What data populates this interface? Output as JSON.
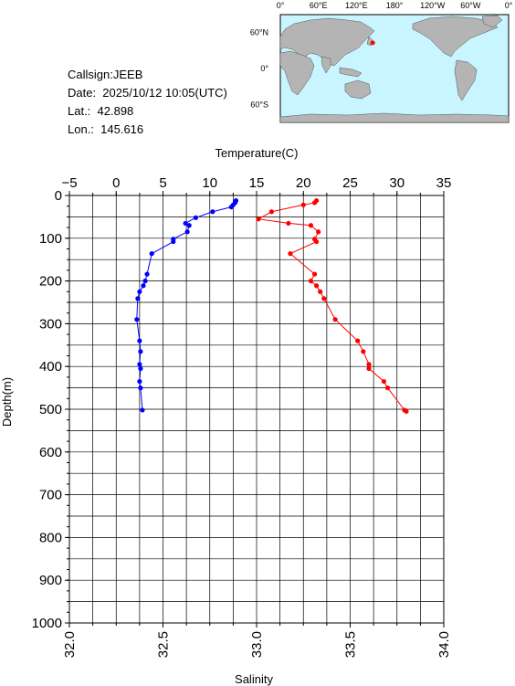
{
  "station": {
    "callsign": "Callsign:JEEB",
    "date": "Date:  2025/10/12 10:05(UTC)",
    "lat": "Lat.:  42.898",
    "lon": "Lon.:  145.616"
  },
  "map": {
    "lon_labels": [
      "0°",
      "60°E",
      "120°E",
      "180°",
      "120°W",
      "60°W",
      "0°"
    ],
    "lat_labels": [
      "60°N",
      "0°",
      "60°S"
    ],
    "ocean_color": "#c8f5ff",
    "land_color": "#b4b4b4",
    "marker_color": "#ff0000",
    "marker_lon": 145.616,
    "marker_lat": 42.898
  },
  "chart_data": {
    "type": "line",
    "temperature_axis": {
      "label": "Temperature(C)",
      "range": [
        -5,
        35
      ],
      "ticks": [
        "−5",
        "0",
        "5",
        "10",
        "15",
        "20",
        "25",
        "30",
        "35"
      ]
    },
    "salinity_axis": {
      "label": "Salinity",
      "range": [
        32.0,
        34.0
      ],
      "ticks": [
        "32.0",
        "32.5",
        "33.0",
        "33.5",
        "34.0"
      ]
    },
    "depth_axis": {
      "label": "Depth(m)",
      "range": [
        0,
        1000
      ],
      "ticks": [
        "0",
        "100",
        "200",
        "300",
        "400",
        "500",
        "600",
        "700",
        "800",
        "900",
        "1000"
      ]
    },
    "grid": true,
    "series": [
      {
        "color": "#0000ff",
        "axis": "temperature",
        "points": [
          {
            "depth": 12,
            "value": 12.8
          },
          {
            "depth": 17,
            "value": 12.7
          },
          {
            "depth": 22,
            "value": 12.5
          },
          {
            "depth": 27,
            "value": 12.3
          },
          {
            "depth": 38,
            "value": 10.3
          },
          {
            "depth": 52,
            "value": 8.5
          },
          {
            "depth": 65,
            "value": 7.4
          },
          {
            "depth": 70,
            "value": 7.8
          },
          {
            "depth": 85,
            "value": 7.6
          },
          {
            "depth": 102,
            "value": 6.1
          },
          {
            "depth": 108,
            "value": 6.1
          },
          {
            "depth": 136,
            "value": 3.8
          },
          {
            "depth": 184,
            "value": 3.3
          },
          {
            "depth": 200,
            "value": 3.1
          },
          {
            "depth": 211,
            "value": 2.9
          },
          {
            "depth": 225,
            "value": 2.5
          },
          {
            "depth": 241,
            "value": 2.3
          },
          {
            "depth": 290,
            "value": 2.2
          },
          {
            "depth": 340,
            "value": 2.5
          },
          {
            "depth": 365,
            "value": 2.6
          },
          {
            "depth": 395,
            "value": 2.5
          },
          {
            "depth": 405,
            "value": 2.6
          },
          {
            "depth": 435,
            "value": 2.5
          },
          {
            "depth": 450,
            "value": 2.6
          },
          {
            "depth": 502,
            "value": 2.8
          }
        ]
      },
      {
        "color": "#ff0000",
        "axis": "salinity",
        "points": [
          {
            "depth": 12,
            "value": 33.32
          },
          {
            "depth": 17,
            "value": 33.31
          },
          {
            "depth": 22,
            "value": 33.25
          },
          {
            "depth": 38,
            "value": 33.08
          },
          {
            "depth": 55,
            "value": 33.01
          },
          {
            "depth": 65,
            "value": 33.17
          },
          {
            "depth": 70,
            "value": 33.29
          },
          {
            "depth": 85,
            "value": 33.33
          },
          {
            "depth": 102,
            "value": 33.31
          },
          {
            "depth": 108,
            "value": 33.32
          },
          {
            "depth": 136,
            "value": 33.18
          },
          {
            "depth": 184,
            "value": 33.31
          },
          {
            "depth": 200,
            "value": 33.29
          },
          {
            "depth": 211,
            "value": 33.32
          },
          {
            "depth": 225,
            "value": 33.34
          },
          {
            "depth": 241,
            "value": 33.36
          },
          {
            "depth": 290,
            "value": 33.42
          },
          {
            "depth": 340,
            "value": 33.54
          },
          {
            "depth": 365,
            "value": 33.57
          },
          {
            "depth": 395,
            "value": 33.6
          },
          {
            "depth": 405,
            "value": 33.6
          },
          {
            "depth": 435,
            "value": 33.68
          },
          {
            "depth": 450,
            "value": 33.7
          },
          {
            "depth": 502,
            "value": 33.79
          },
          {
            "depth": 505,
            "value": 33.8
          }
        ]
      }
    ]
  }
}
